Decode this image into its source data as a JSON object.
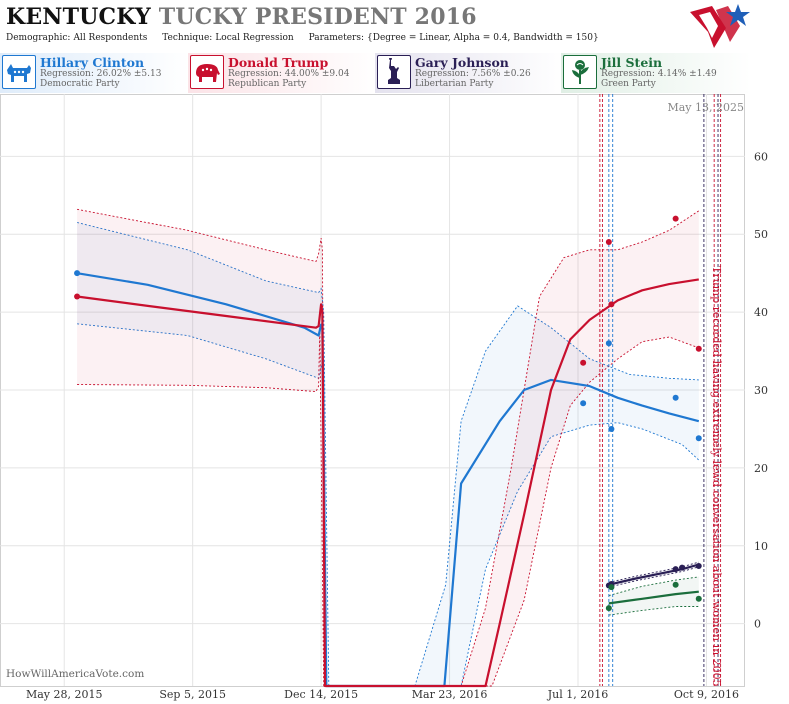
{
  "header": {
    "title_state": "KENTUCKY",
    "title_rest": "TUCKY PRESIDENT 2016",
    "demographic_label": "Demographic:",
    "demographic_value": "All Respondents",
    "technique_label": "Technique:",
    "technique_value": "Local Regression",
    "parameters_label": "Parameters:",
    "parameters_value": "{Degree = Linear, Alpha = 0.4, Bandwidth = 150}"
  },
  "candidates": [
    {
      "name": "Hillary Clinton",
      "regression": "Regression: 26.02% ±5.13",
      "party": "Democratic Party",
      "color": "#1f78d1",
      "icon": "donkey-icon"
    },
    {
      "name": "Donald Trump",
      "regression": "Regression: 44.00% ±9.04",
      "party": "Republican Party",
      "color": "#c8102e",
      "icon": "elephant-icon"
    },
    {
      "name": "Gary Johnson",
      "regression": "Regression: 7.56% ±0.26",
      "party": "Libertarian Party",
      "color": "#2a1f55",
      "icon": "statue-of-liberty-icon"
    },
    {
      "name": "Jill Stein",
      "regression": "Regression: 4.14% ±1.49",
      "party": "Green Party",
      "color": "#1b6e3c",
      "icon": "rose-icon"
    }
  ],
  "footer": {
    "site": "HowWillAmericaVote.com"
  },
  "chart_data": {
    "type": "line",
    "date_stamp": "May 13, 2025",
    "x_ticks": [
      "May 28, 2015",
      "Sep 5, 2015",
      "Dec 14, 2015",
      "Mar 23, 2016",
      "Jul 1, 2016",
      "Oct 9, 2016"
    ],
    "y_ticks": [
      0,
      10,
      20,
      30,
      40,
      50,
      60
    ],
    "ylim": [
      -8,
      68
    ],
    "xlim": [
      "2015-04-08",
      "2016-11-08"
    ],
    "grid": true,
    "annotation": "Trump recorded having extremely lewd conversation about women in 2005",
    "series": [
      {
        "name": "Hillary Clinton",
        "color": "#1f78d1",
        "line": [
          [
            "2015-06-07",
            45
          ],
          [
            "2015-08-01",
            43.5
          ],
          [
            "2015-10-01",
            41
          ],
          [
            "2015-12-01",
            38
          ],
          [
            "2015-12-12",
            37
          ],
          [
            "2015-12-14",
            38.4
          ],
          [
            "2015-12-15",
            38
          ],
          [
            "2015-12-18",
            -9
          ],
          [
            "2016-03-19",
            -9
          ],
          [
            "2016-04-01",
            18
          ],
          [
            "2016-05-01",
            26
          ],
          [
            "2016-05-20",
            30
          ],
          [
            "2016-06-10",
            31.3
          ],
          [
            "2016-07-10",
            30.5
          ],
          [
            "2016-08-01",
            29
          ],
          [
            "2016-08-20",
            28
          ],
          [
            "2016-09-10",
            27
          ],
          [
            "2016-10-03",
            26
          ]
        ],
        "upper": [
          [
            "2015-06-07",
            51.5
          ],
          [
            "2015-09-01",
            48
          ],
          [
            "2015-11-01",
            44
          ],
          [
            "2015-12-12",
            42.5
          ],
          [
            "2015-12-14",
            43
          ],
          [
            "2015-12-16",
            40
          ],
          [
            "2015-12-20",
            -9
          ],
          [
            "2016-02-25",
            -9
          ],
          [
            "2016-03-20",
            5
          ],
          [
            "2016-04-01",
            26
          ],
          [
            "2016-04-20",
            35
          ],
          [
            "2016-05-15",
            40.8
          ],
          [
            "2016-06-10",
            38
          ],
          [
            "2016-07-10",
            34
          ],
          [
            "2016-08-10",
            32
          ],
          [
            "2016-09-10",
            31.5
          ],
          [
            "2016-10-03",
            31.3
          ]
        ],
        "lower": [
          [
            "2015-06-07",
            38.5
          ],
          [
            "2015-09-01",
            37
          ],
          [
            "2015-11-01",
            34
          ],
          [
            "2015-12-12",
            31.5
          ],
          [
            "2015-12-14",
            33
          ],
          [
            "2015-12-16",
            34
          ],
          [
            "2015-12-18",
            -9
          ],
          [
            "2016-04-01",
            -9
          ],
          [
            "2016-04-20",
            7
          ],
          [
            "2016-05-15",
            17
          ],
          [
            "2016-06-10",
            24
          ],
          [
            "2016-07-10",
            25.5
          ],
          [
            "2016-08-01",
            25.8
          ],
          [
            "2016-08-20",
            25
          ],
          [
            "2016-09-20",
            23
          ],
          [
            "2016-10-03",
            21
          ]
        ],
        "points": [
          [
            "2015-06-07",
            45
          ],
          [
            "2016-07-05",
            28.3
          ],
          [
            "2016-07-25",
            36
          ],
          [
            "2016-07-27",
            25
          ],
          [
            "2016-09-15",
            29
          ],
          [
            "2016-10-03",
            23.8
          ]
        ]
      },
      {
        "name": "Donald Trump",
        "color": "#c8102e",
        "line": [
          [
            "2015-06-07",
            42
          ],
          [
            "2015-08-01",
            40.8
          ],
          [
            "2015-10-01",
            39.5
          ],
          [
            "2015-12-10",
            38
          ],
          [
            "2015-12-12",
            38.2
          ],
          [
            "2015-12-14",
            41
          ],
          [
            "2015-12-15",
            40
          ],
          [
            "2015-12-17",
            -9
          ],
          [
            "2016-04-20",
            -9
          ],
          [
            "2016-05-01",
            0
          ],
          [
            "2016-05-20",
            14
          ],
          [
            "2016-06-10",
            30
          ],
          [
            "2016-06-25",
            36.5
          ],
          [
            "2016-07-10",
            39
          ],
          [
            "2016-08-01",
            41.5
          ],
          [
            "2016-08-20",
            42.8
          ],
          [
            "2016-09-10",
            43.6
          ],
          [
            "2016-10-03",
            44.2
          ]
        ],
        "upper": [
          [
            "2015-06-07",
            53.2
          ],
          [
            "2015-09-01",
            50.5
          ],
          [
            "2015-11-01",
            48
          ],
          [
            "2015-12-10",
            46.5
          ],
          [
            "2015-12-12",
            47.5
          ],
          [
            "2015-12-14",
            49.5
          ],
          [
            "2015-12-15",
            48
          ],
          [
            "2015-12-17",
            -9
          ],
          [
            "2016-04-01",
            -9
          ],
          [
            "2016-04-20",
            2
          ],
          [
            "2016-05-10",
            20
          ],
          [
            "2016-06-01",
            42
          ],
          [
            "2016-06-20",
            47
          ],
          [
            "2016-07-10",
            48
          ],
          [
            "2016-08-01",
            48
          ],
          [
            "2016-08-20",
            49
          ],
          [
            "2016-09-10",
            50.5
          ],
          [
            "2016-10-03",
            53
          ]
        ],
        "lower": [
          [
            "2015-06-07",
            30.7
          ],
          [
            "2015-09-01",
            30.6
          ],
          [
            "2015-11-01",
            30.3
          ],
          [
            "2015-12-10",
            29.8
          ],
          [
            "2015-12-12",
            30.5
          ],
          [
            "2015-12-13",
            38
          ],
          [
            "2015-12-16",
            -9
          ],
          [
            "2016-04-25",
            -9
          ],
          [
            "2016-05-20",
            3
          ],
          [
            "2016-06-10",
            20
          ],
          [
            "2016-06-25",
            28
          ],
          [
            "2016-07-10",
            31
          ],
          [
            "2016-08-01",
            34
          ],
          [
            "2016-08-20",
            36.2
          ],
          [
            "2016-09-10",
            36.8
          ],
          [
            "2016-10-03",
            35.4
          ]
        ],
        "points": [
          [
            "2015-06-07",
            42
          ],
          [
            "2016-07-05",
            33.5
          ],
          [
            "2016-07-25",
            49
          ],
          [
            "2016-07-27",
            41
          ],
          [
            "2016-09-15",
            52
          ],
          [
            "2016-10-03",
            35.3
          ]
        ]
      },
      {
        "name": "Gary Johnson",
        "color": "#2a1f55",
        "line": [
          [
            "2016-07-25",
            5
          ],
          [
            "2016-08-15",
            5.8
          ],
          [
            "2016-09-05",
            6.5
          ],
          [
            "2016-09-20",
            7
          ],
          [
            "2016-10-03",
            7.6
          ]
        ],
        "upper": [
          [
            "2016-07-25",
            5.3
          ],
          [
            "2016-08-15",
            6.1
          ],
          [
            "2016-09-05",
            6.8
          ],
          [
            "2016-09-20",
            7.3
          ],
          [
            "2016-10-03",
            7.9
          ]
        ],
        "lower": [
          [
            "2016-07-25",
            4.7
          ],
          [
            "2016-08-15",
            5.5
          ],
          [
            "2016-09-05",
            6.2
          ],
          [
            "2016-09-20",
            6.7
          ],
          [
            "2016-10-03",
            7.3
          ]
        ],
        "points": [
          [
            "2016-07-25",
            4.9
          ],
          [
            "2016-07-27",
            5.1
          ],
          [
            "2016-09-15",
            7
          ],
          [
            "2016-09-20",
            7.2
          ],
          [
            "2016-10-03",
            7.4
          ]
        ]
      },
      {
        "name": "Jill Stein",
        "color": "#1b6e3c",
        "line": [
          [
            "2016-07-25",
            2.6
          ],
          [
            "2016-08-20",
            3.2
          ],
          [
            "2016-09-15",
            3.8
          ],
          [
            "2016-10-03",
            4.1
          ]
        ],
        "upper": [
          [
            "2016-07-25",
            3.6
          ],
          [
            "2016-08-20",
            4.8
          ],
          [
            "2016-09-15",
            5.6
          ],
          [
            "2016-10-03",
            6
          ]
        ],
        "lower": [
          [
            "2016-07-25",
            1.1
          ],
          [
            "2016-08-20",
            1.7
          ],
          [
            "2016-09-15",
            2.2
          ],
          [
            "2016-10-03",
            2.2
          ]
        ],
        "points": [
          [
            "2016-07-25",
            2
          ],
          [
            "2016-07-27",
            4.7
          ],
          [
            "2016-09-15",
            5
          ],
          [
            "2016-10-03",
            3.2
          ]
        ]
      }
    ],
    "event_lines": [
      {
        "date": "2016-07-18",
        "color": "#c8102e"
      },
      {
        "date": "2016-07-20",
        "color": "#c8102e"
      },
      {
        "date": "2016-07-25",
        "color": "#1f78d1"
      },
      {
        "date": "2016-07-28",
        "color": "#1f78d1"
      },
      {
        "date": "2016-10-07",
        "color": "#2a1f55"
      },
      {
        "date": "2016-10-15",
        "color": "#c8102e"
      },
      {
        "date": "2016-10-18",
        "color": "#2a1f55"
      },
      {
        "date": "2016-10-20",
        "color": "#c8102e"
      }
    ]
  }
}
